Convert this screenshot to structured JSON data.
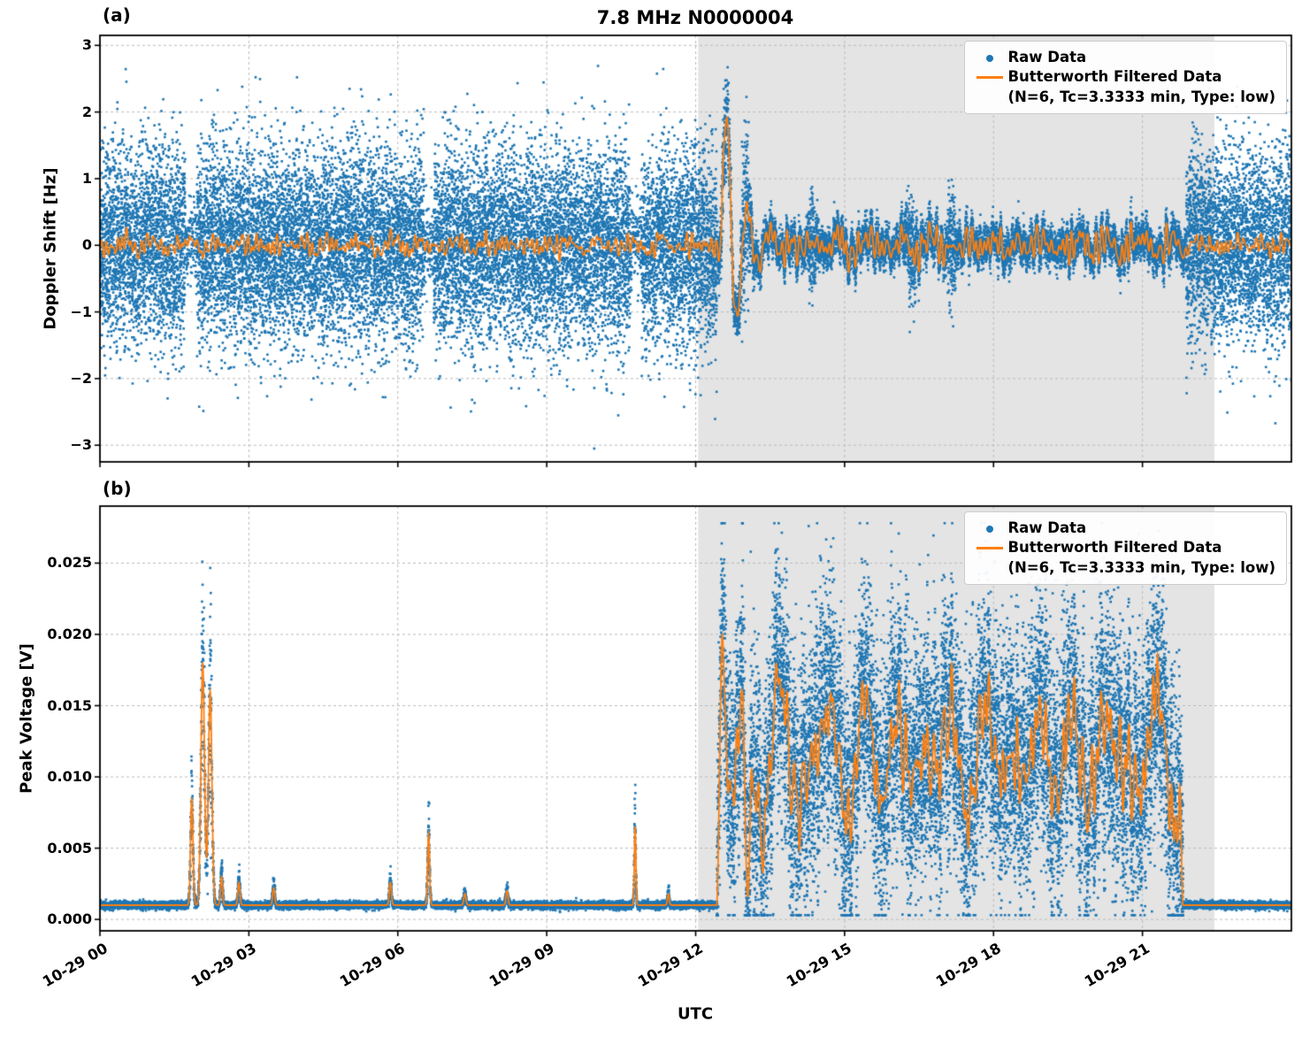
{
  "figure": {
    "panel_a_label": "(a)",
    "panel_b_label": "(b)",
    "background": "#ffffff"
  },
  "colors": {
    "raw": "#1f77b4",
    "filtered": "#ff7f0e",
    "shade": "#e4e4e4",
    "grid": "#bbbbbb",
    "axis": "#000000"
  },
  "legend": {
    "raw_label": "Raw Data",
    "filtered_label": "Butterworth Filtered Data",
    "filtered_sublabel": "(N=6, Tc=3.3333 min, Type: low)"
  },
  "x_axis": {
    "min_hours": 0,
    "max_hours": 24,
    "tick_hours": [
      0,
      3,
      6,
      9,
      12,
      15,
      18,
      21
    ],
    "tick_labels": [
      "10-29 00",
      "10-29 03",
      "10-29 06",
      "10-29 09",
      "10-29 12",
      "10-29 15",
      "10-29 18",
      "10-29 21"
    ]
  },
  "chart_data": [
    {
      "type": "scatter",
      "panel": "a",
      "title": "7.8 MHz N0000004",
      "ylabel": "Doppler Shift [Hz]",
      "ylim": [
        -3.25,
        3.15
      ],
      "ytick_values": [
        3,
        2,
        1,
        0,
        -1,
        -2,
        -3
      ],
      "ytick_labels": [
        "3",
        "2",
        "1",
        "0",
        "−1",
        "−2",
        "−3"
      ],
      "shaded_region_hours": [
        12.05,
        22.45
      ],
      "series": [
        {
          "name": "Raw Data",
          "style": "scatter",
          "color": "#1f77b4"
        },
        {
          "name": "Butterworth Filtered Data",
          "style": "line",
          "color": "#ff7f0e"
        }
      ],
      "generation": {
        "seed": 42,
        "dt_hours": 0.004,
        "points_per_step": 6,
        "line": {
          "base_amp": 0.17,
          "disturbed_amp": 0.28,
          "disturbed_range": [
            12.45,
            21.88
          ],
          "freq_range": [
            5,
            16
          ],
          "n_terms": 9,
          "spike": {
            "t": 12.52,
            "amp": 2.4,
            "decay": 2.8,
            "period": 0.42
          }
        },
        "scatter_segments": [
          {
            "t0": 0.0,
            "t1": 1.72,
            "std": 0.72,
            "density": 1.0
          },
          {
            "t0": 1.72,
            "t1": 1.95,
            "std": 0.28,
            "density": 0.3
          },
          {
            "t0": 1.95,
            "t1": 6.52,
            "std": 0.72,
            "density": 1.0
          },
          {
            "t0": 6.52,
            "t1": 6.72,
            "std": 0.3,
            "density": 0.35
          },
          {
            "t0": 6.72,
            "t1": 10.68,
            "std": 0.72,
            "density": 1.0
          },
          {
            "t0": 10.68,
            "t1": 10.9,
            "std": 0.3,
            "density": 0.35
          },
          {
            "t0": 10.9,
            "t1": 12.42,
            "std": 0.72,
            "density": 1.0
          },
          {
            "t0": 12.42,
            "t1": 21.88,
            "std": 0.13,
            "density": 0.8
          },
          {
            "t0": 21.88,
            "t1": 24.0,
            "std": 0.72,
            "density": 1.0
          }
        ],
        "scatter_bursts": [
          {
            "t": 12.6,
            "w": 0.12,
            "std": 0.3
          },
          {
            "t": 13.0,
            "w": 0.1,
            "std": 0.55
          },
          {
            "t": 14.35,
            "w": 0.08,
            "std": 0.3
          },
          {
            "t": 16.35,
            "w": 0.1,
            "std": 0.35
          },
          {
            "t": 17.15,
            "w": 0.08,
            "std": 0.35
          }
        ],
        "clip": [
          -3.05,
          2.95
        ]
      }
    },
    {
      "type": "scatter",
      "panel": "b",
      "xlabel": "UTC",
      "ylabel": "Peak Voltage [V]",
      "ylim": [
        -0.0008,
        0.029
      ],
      "ytick_values": [
        0.0,
        0.005,
        0.01,
        0.015,
        0.02,
        0.025
      ],
      "ytick_labels": [
        "0.000",
        "0.005",
        "0.010",
        "0.015",
        "0.020",
        "0.025"
      ],
      "shaded_region_hours": [
        12.05,
        22.45
      ],
      "series": [
        {
          "name": "Raw Data",
          "style": "scatter",
          "color": "#1f77b4"
        },
        {
          "name": "Butterworth Filtered Data",
          "style": "line",
          "color": "#ff7f0e"
        }
      ],
      "generation": {
        "seed": 7,
        "dt_hours": 0.004,
        "points_per_step": 4,
        "points_per_step_disturbed": 6,
        "baseline": 0.001,
        "disturbed_range": [
          12.42,
          21.82
        ],
        "disturbed_mean": 0.0115,
        "disturbed_slow_amp": 0.0055,
        "disturbed_fast_amp": 0.0035,
        "slow_freq_range": [
          0.8,
          2.5
        ],
        "fast_freq_range": [
          5,
          14
        ],
        "dip": {
          "t": 13.05,
          "w": 0.07,
          "depth": 0.9
        },
        "onset_spike": {
          "t": 12.55,
          "w": 0.09,
          "amp": 0.009
        },
        "spikes": [
          {
            "t": 1.85,
            "w": 0.035,
            "amp": 0.0075
          },
          {
            "t": 2.07,
            "w": 0.05,
            "amp": 0.017
          },
          {
            "t": 2.22,
            "w": 0.05,
            "amp": 0.015
          },
          {
            "t": 2.45,
            "w": 0.03,
            "amp": 0.002
          },
          {
            "t": 2.8,
            "w": 0.03,
            "amp": 0.0016
          },
          {
            "t": 3.5,
            "w": 0.03,
            "amp": 0.0012
          },
          {
            "t": 5.85,
            "w": 0.03,
            "amp": 0.0016
          },
          {
            "t": 6.62,
            "w": 0.028,
            "amp": 0.005
          },
          {
            "t": 7.35,
            "w": 0.03,
            "amp": 0.0008
          },
          {
            "t": 8.2,
            "w": 0.03,
            "amp": 0.001
          },
          {
            "t": 10.78,
            "w": 0.022,
            "amp": 0.0055
          },
          {
            "t": 11.45,
            "w": 0.025,
            "amp": 0.0008
          }
        ],
        "scatter_std_quiet": 0.00012,
        "scatter_std_disturbed": 0.0042,
        "spike_scatter_factor": 0.25,
        "clip": [
          0.0003,
          0.0278
        ]
      }
    }
  ]
}
